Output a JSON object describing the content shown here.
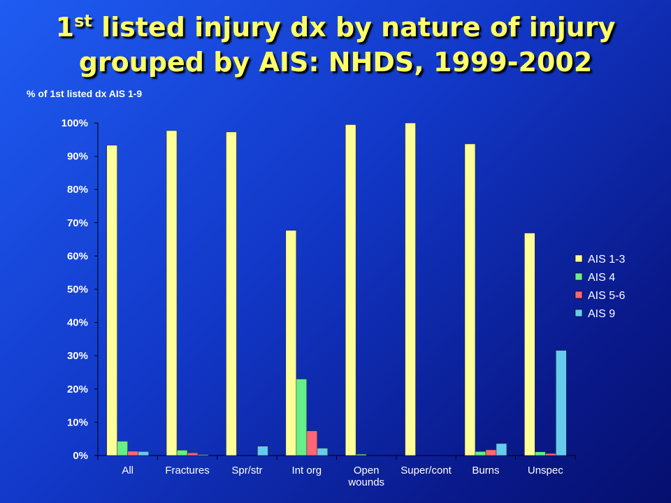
{
  "slide": {
    "title_line1_prefix": "1",
    "title_line1_sup": "st",
    "title_line1_rest": " listed injury dx by nature of injury",
    "title_line2": "grouped by AIS: NHDS, 1999-2002",
    "subtitle": "% of 1st listed dx AIS 1-9"
  },
  "chart_data": {
    "type": "bar",
    "title": "",
    "ylabel": "% of 1st listed dx AIS 1-9",
    "ylim": [
      0,
      100
    ],
    "yticks": [
      "0%",
      "10%",
      "20%",
      "30%",
      "40%",
      "50%",
      "60%",
      "70%",
      "80%",
      "90%",
      "100%"
    ],
    "categories": [
      [
        "All"
      ],
      [
        "Fractures"
      ],
      [
        "Spr/str"
      ],
      [
        "Int org"
      ],
      [
        "Open",
        "wounds"
      ],
      [
        "Super/cont"
      ],
      [
        "Burns"
      ],
      [
        "Unspec"
      ]
    ],
    "legend_position": "right",
    "series": [
      {
        "name": "AIS 1-3",
        "color": "#ffff99",
        "values": [
          93.3,
          97.7,
          97.3,
          67.7,
          99.5,
          100.0,
          93.7,
          66.9
        ]
      },
      {
        "name": "AIS 4",
        "color": "#66ee88",
        "values": [
          4.3,
          1.6,
          0,
          23.0,
          0.4,
          0,
          1.2,
          1.1
        ]
      },
      {
        "name": "AIS 5-6",
        "color": "#ff6677",
        "values": [
          1.3,
          0.8,
          0,
          7.4,
          0,
          0,
          1.7,
          0.6
        ]
      },
      {
        "name": "AIS 9",
        "color": "#66ccee",
        "values": [
          1.2,
          0.3,
          2.8,
          2.2,
          0,
          0,
          3.6,
          31.6
        ]
      }
    ]
  }
}
